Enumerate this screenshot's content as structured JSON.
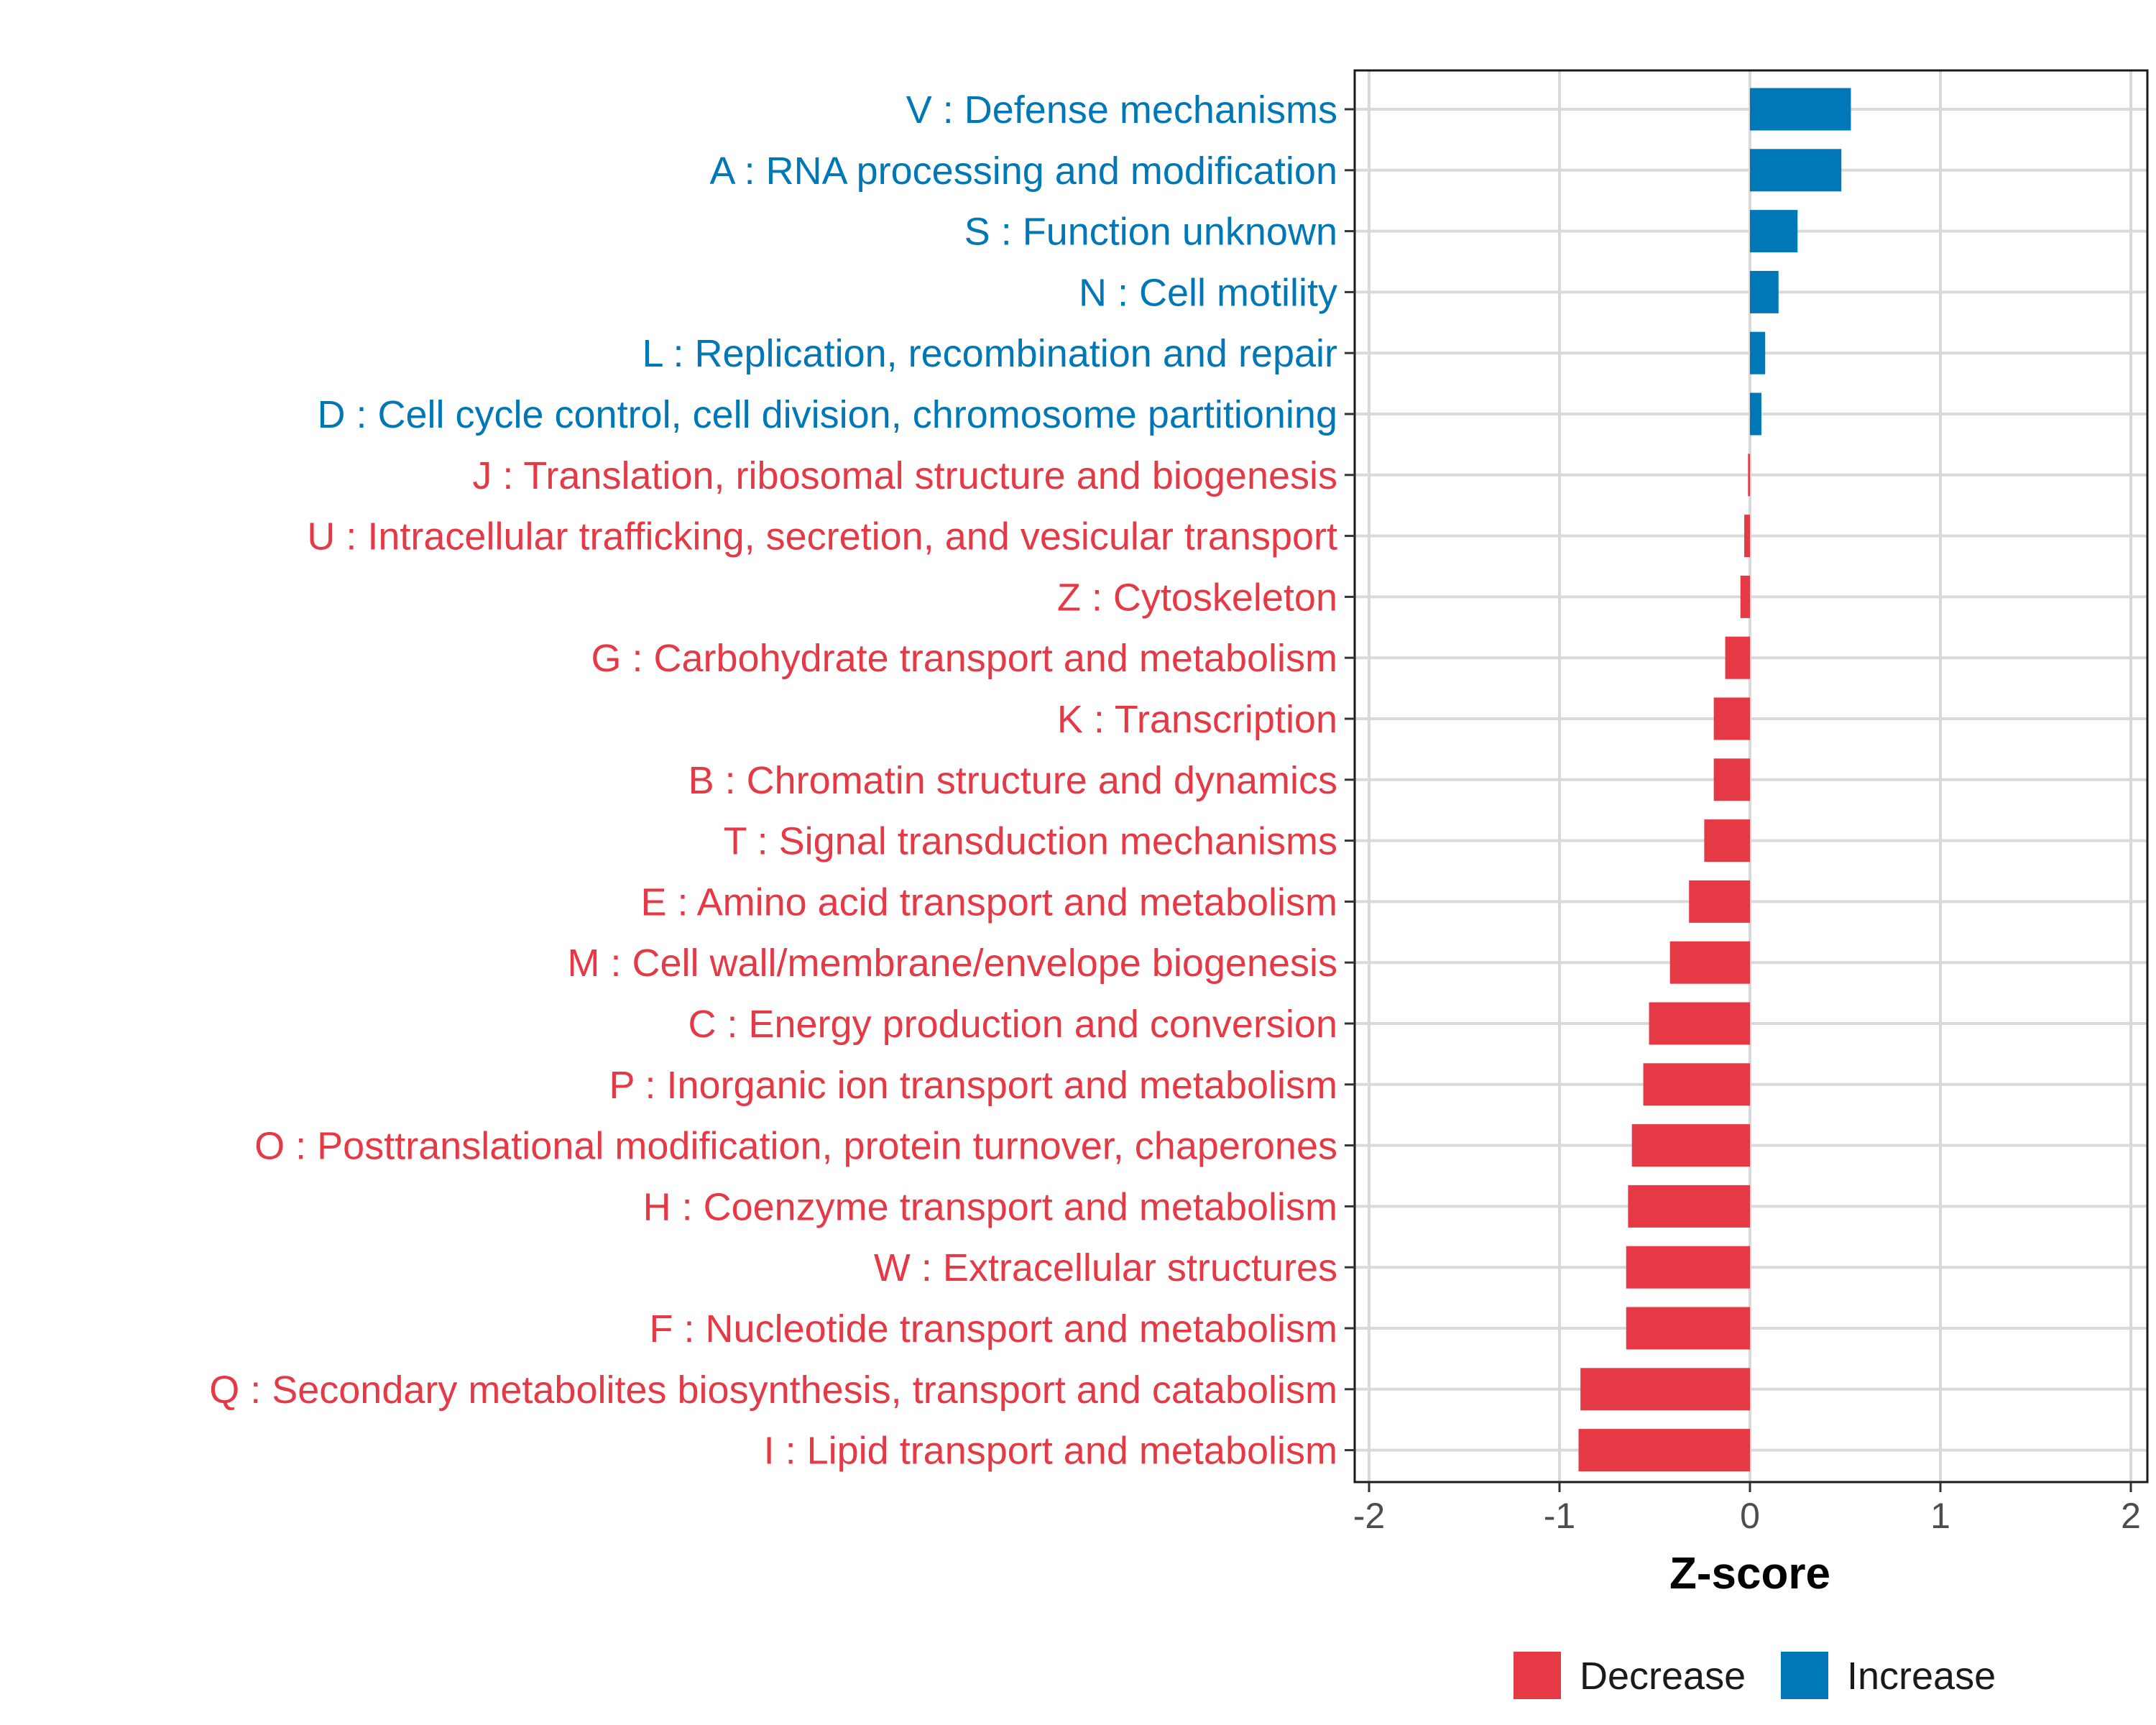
{
  "chart_data": {
    "type": "bar",
    "orientation": "horizontal",
    "xlabel": "Z-score",
    "ylabel": "",
    "xlim": [
      -2,
      2
    ],
    "xticks": [
      -2,
      -1,
      0,
      1,
      2
    ],
    "xtick_labels": [
      "-2",
      "-1",
      "0",
      "1",
      "2"
    ],
    "grid": true,
    "legend": {
      "position": "bottom",
      "entries": [
        {
          "name": "Decrease",
          "color": "#E63946"
        },
        {
          "name": "Increase",
          "color": "#0077B6"
        }
      ]
    },
    "categories": [
      "V : Defense mechanisms",
      "A : RNA processing and modification",
      "S : Function unknown",
      "N : Cell motility",
      "L : Replication, recombination and repair",
      "D : Cell cycle control, cell division, chromosome partitioning",
      "J : Translation, ribosomal structure and biogenesis",
      "U : Intracellular trafficking, secretion, and vesicular transport",
      "Z : Cytoskeleton",
      "G : Carbohydrate transport and metabolism",
      "K : Transcription",
      "B : Chromatin structure and dynamics",
      "T : Signal transduction mechanisms",
      "E : Amino acid transport and metabolism",
      "M : Cell wall/membrane/envelope biogenesis",
      "C : Energy production and conversion",
      "P : Inorganic ion transport and metabolism",
      "O : Posttranslational modification, protein turnover, chaperones",
      "H : Coenzyme transport and metabolism",
      "W : Extracellular structures",
      "F : Nucleotide transport and metabolism",
      "Q : Secondary metabolites biosynthesis, transport and catabolism",
      "I : Lipid transport and metabolism"
    ],
    "values": [
      0.53,
      0.48,
      0.25,
      0.15,
      0.08,
      0.06,
      -0.01,
      -0.03,
      -0.05,
      -0.13,
      -0.19,
      -0.19,
      -0.24,
      -0.32,
      -0.42,
      -0.53,
      -0.56,
      -0.62,
      -0.64,
      -0.65,
      -0.65,
      -0.89,
      -0.9
    ],
    "groups": [
      "Increase",
      "Increase",
      "Increase",
      "Increase",
      "Increase",
      "Increase",
      "Decrease",
      "Decrease",
      "Decrease",
      "Decrease",
      "Decrease",
      "Decrease",
      "Decrease",
      "Decrease",
      "Decrease",
      "Decrease",
      "Decrease",
      "Decrease",
      "Decrease",
      "Decrease",
      "Decrease",
      "Decrease",
      "Decrease"
    ]
  }
}
